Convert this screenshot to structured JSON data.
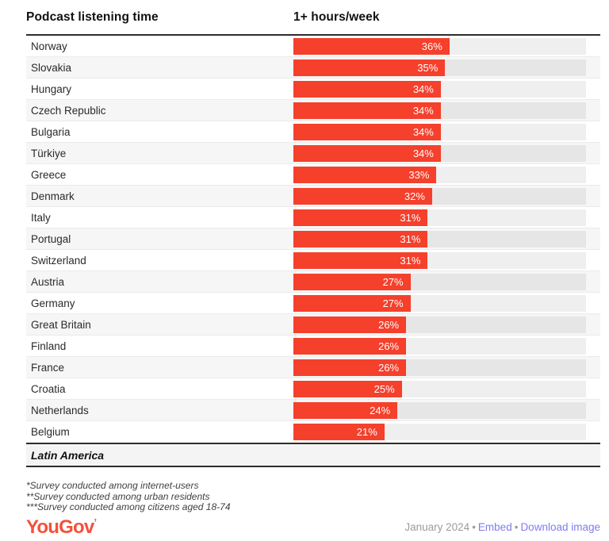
{
  "header": {
    "title": "Podcast listening time",
    "column_label": "1+ hours/week"
  },
  "chart_data": {
    "type": "bar",
    "orientation": "horizontal",
    "title": "Podcast listening time",
    "value_column_label": "1+ hours/week",
    "unit": "%",
    "xlim": [
      0,
      67.5
    ],
    "grid": false,
    "legend": "none",
    "bar_color": "#f5402c",
    "categories": [
      "Norway",
      "Slovakia",
      "Hungary",
      "Czech Republic",
      "Bulgaria",
      "Türkiye",
      "Greece",
      "Denmark",
      "Italy",
      "Portugal",
      "Switzerland",
      "Austria",
      "Germany",
      "Great Britain",
      "Finland",
      "France",
      "Croatia",
      "Netherlands",
      "Belgium"
    ],
    "values": [
      36,
      35,
      34,
      34,
      34,
      34,
      33,
      32,
      31,
      31,
      31,
      27,
      27,
      26,
      26,
      26,
      25,
      24,
      21
    ],
    "labels": [
      "36%",
      "35%",
      "34%",
      "34%",
      "34%",
      "34%",
      "33%",
      "32%",
      "31%",
      "31%",
      "31%",
      "27%",
      "27%",
      "26%",
      "26%",
      "26%",
      "25%",
      "24%",
      "21%"
    ]
  },
  "sections": {
    "next_label": "Latin America"
  },
  "footnotes": [
    "*Survey conducted among internet-users",
    "**Survey conducted among urban residents",
    "***Survey conducted among citizens aged 18-74"
  ],
  "footer": {
    "logo_text": "YouGov",
    "logo_mark": "’",
    "date": "January 2024",
    "separator": "•",
    "embed_label": "Embed",
    "download_label": "Download image"
  },
  "colors": {
    "bar_red": "#f5402c",
    "logo_red": "#f5503c",
    "link_purple": "#7d7df2",
    "date_gray": "#9c9c9c",
    "rule_dark": "#2d2d2d",
    "alt_row_bg": "#f6f6f6"
  }
}
